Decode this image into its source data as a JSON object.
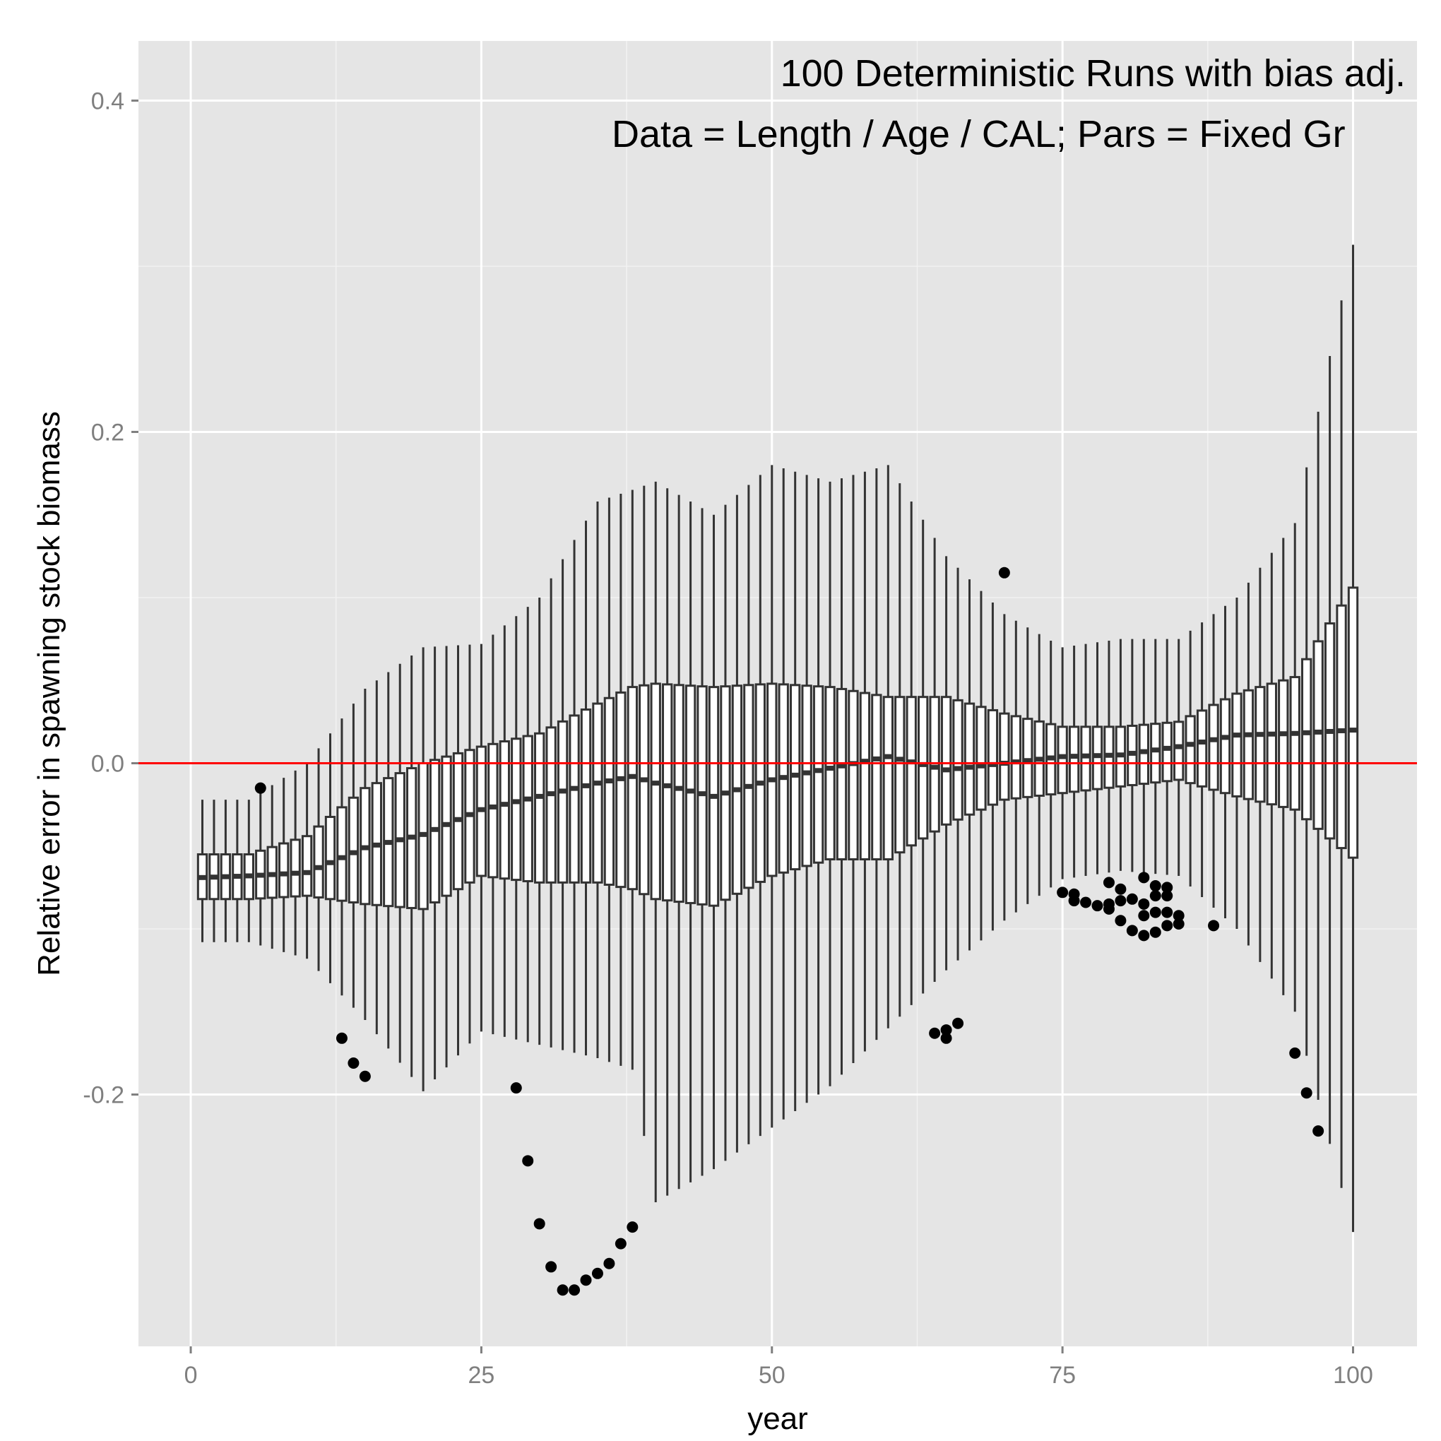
{
  "chart_data": {
    "type": "boxplot",
    "title": "",
    "xlabel": "year",
    "ylabel": "Relative error in spawning stock biomass",
    "annotations": [
      "100 Deterministic Runs with bias adj.",
      "Data = Length / Age / CAL; Pars = Fixed Gr"
    ],
    "xlim": [
      -4.5,
      105.5
    ],
    "ylim": [
      -0.352,
      0.436
    ],
    "x_ticks": [
      0,
      25,
      50,
      75,
      100
    ],
    "x_tick_labels": [
      "0",
      "25",
      "50",
      "75",
      "100"
    ],
    "y_ticks": [
      -0.2,
      0.0,
      0.2,
      0.4
    ],
    "y_tick_labels": [
      "-0.2",
      "0.0",
      "0.2",
      "0.4"
    ],
    "grid": true,
    "reference_line": {
      "y": 0.0,
      "color": "#ff0000"
    },
    "key_years": [
      1,
      5,
      10,
      15,
      20,
      25,
      30,
      35,
      38,
      40,
      45,
      50,
      55,
      60,
      65,
      70,
      75,
      80,
      85,
      90,
      95,
      100
    ],
    "key_whisker_low": [
      -0.108,
      -0.108,
      -0.118,
      -0.155,
      -0.198,
      -0.162,
      -0.17,
      -0.178,
      -0.185,
      -0.265,
      -0.245,
      -0.22,
      -0.195,
      -0.16,
      -0.125,
      -0.095,
      -0.07,
      -0.065,
      -0.068,
      -0.1,
      -0.15,
      -0.283
    ],
    "key_q1": [
      -0.082,
      -0.082,
      -0.08,
      -0.085,
      -0.088,
      -0.068,
      -0.072,
      -0.072,
      -0.076,
      -0.082,
      -0.086,
      -0.068,
      -0.058,
      -0.058,
      -0.037,
      -0.022,
      -0.018,
      -0.014,
      -0.01,
      -0.02,
      -0.028,
      -0.057
    ],
    "key_median": [
      -0.069,
      -0.068,
      -0.066,
      -0.051,
      -0.043,
      -0.028,
      -0.02,
      -0.012,
      -0.008,
      -0.012,
      -0.02,
      -0.01,
      -0.003,
      0.004,
      -0.004,
      0.0,
      0.004,
      0.005,
      0.01,
      0.017,
      0.018,
      0.02
    ],
    "key_q3": [
      -0.055,
      -0.055,
      -0.044,
      -0.015,
      0.0,
      0.01,
      0.018,
      0.036,
      0.046,
      0.048,
      0.046,
      0.048,
      0.046,
      0.04,
      0.04,
      0.03,
      0.022,
      0.022,
      0.025,
      0.042,
      0.052,
      0.106
    ],
    "key_whisker_high": [
      -0.022,
      -0.022,
      0.0,
      0.045,
      0.07,
      0.072,
      0.1,
      0.158,
      0.165,
      0.17,
      0.15,
      0.18,
      0.17,
      0.18,
      0.125,
      0.09,
      0.07,
      0.075,
      0.075,
      0.1,
      0.145,
      0.313
    ],
    "outliers": [
      {
        "x": 6,
        "y": -0.015
      },
      {
        "x": 13,
        "y": -0.166
      },
      {
        "x": 14,
        "y": -0.181
      },
      {
        "x": 15,
        "y": -0.189
      },
      {
        "x": 28,
        "y": -0.196
      },
      {
        "x": 29,
        "y": -0.24
      },
      {
        "x": 30,
        "y": -0.278
      },
      {
        "x": 31,
        "y": -0.304
      },
      {
        "x": 32,
        "y": -0.318
      },
      {
        "x": 33,
        "y": -0.318
      },
      {
        "x": 34,
        "y": -0.312
      },
      {
        "x": 35,
        "y": -0.308
      },
      {
        "x": 36,
        "y": -0.302
      },
      {
        "x": 37,
        "y": -0.29
      },
      {
        "x": 38,
        "y": -0.28
      },
      {
        "x": 64,
        "y": -0.163
      },
      {
        "x": 65,
        "y": -0.166
      },
      {
        "x": 65,
        "y": -0.161
      },
      {
        "x": 66,
        "y": -0.157
      },
      {
        "x": 70,
        "y": 0.115
      },
      {
        "x": 75,
        "y": -0.078
      },
      {
        "x": 76,
        "y": -0.079
      },
      {
        "x": 76,
        "y": -0.083
      },
      {
        "x": 77,
        "y": -0.084
      },
      {
        "x": 78,
        "y": -0.086
      },
      {
        "x": 79,
        "y": -0.072
      },
      {
        "x": 79,
        "y": -0.085
      },
      {
        "x": 79,
        "y": -0.088
      },
      {
        "x": 80,
        "y": -0.076
      },
      {
        "x": 80,
        "y": -0.083
      },
      {
        "x": 80,
        "y": -0.095
      },
      {
        "x": 81,
        "y": -0.082
      },
      {
        "x": 81,
        "y": -0.101
      },
      {
        "x": 82,
        "y": -0.069
      },
      {
        "x": 82,
        "y": -0.085
      },
      {
        "x": 82,
        "y": -0.092
      },
      {
        "x": 82,
        "y": -0.104
      },
      {
        "x": 83,
        "y": -0.074
      },
      {
        "x": 83,
        "y": -0.08
      },
      {
        "x": 83,
        "y": -0.09
      },
      {
        "x": 83,
        "y": -0.102
      },
      {
        "x": 84,
        "y": -0.075
      },
      {
        "x": 84,
        "y": -0.08
      },
      {
        "x": 84,
        "y": -0.09
      },
      {
        "x": 84,
        "y": -0.098
      },
      {
        "x": 85,
        "y": -0.092
      },
      {
        "x": 85,
        "y": -0.097
      },
      {
        "x": 88,
        "y": -0.098
      },
      {
        "x": 95,
        "y": -0.175
      },
      {
        "x": 96,
        "y": -0.199
      },
      {
        "x": 97,
        "y": -0.222
      }
    ]
  },
  "colors": {
    "panel": "#e5e5e5",
    "grid_major": "#ffffff",
    "grid_minor": "#f2f2f2",
    "box_stroke": "#333333",
    "box_fill": "#ffffff",
    "point": "#000000",
    "reference": "#ff0000"
  }
}
